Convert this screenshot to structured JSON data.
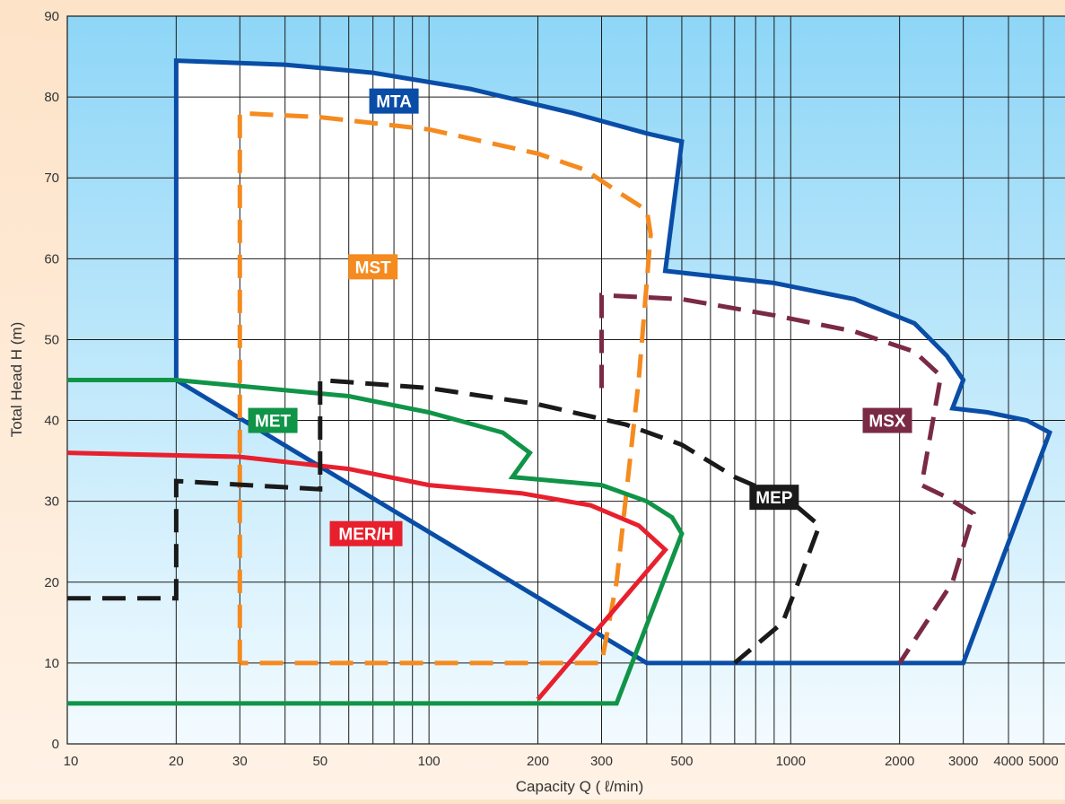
{
  "chart_data": {
    "type": "line",
    "title": "",
    "xlabel": "Capacity Q ( ℓ/min)",
    "ylabel": "Total Head H (m)",
    "xscale": "log",
    "xlim": [
      10,
      6000
    ],
    "ylim": [
      0,
      90
    ],
    "grid": true,
    "x_ticks": [
      10,
      20,
      30,
      50,
      100,
      200,
      300,
      500,
      1000,
      2000,
      3000,
      4000,
      5000
    ],
    "x_tick_labels": [
      "10",
      "20",
      "30",
      "50",
      "100",
      "200",
      "300",
      "500",
      "1000",
      "2000",
      "3000",
      "4000",
      "5000"
    ],
    "y_ticks": [
      0,
      10,
      20,
      30,
      40,
      50,
      60,
      70,
      80,
      90
    ],
    "y_tick_labels": [
      "0",
      "10",
      "20",
      "30",
      "40",
      "50",
      "60",
      "70",
      "80",
      "90"
    ],
    "background_colors": {
      "top": "#8ed6f7",
      "bottom": "#f3fbff"
    },
    "series": [
      {
        "name": "MTA",
        "color": "#0a4da6",
        "dashed": false,
        "fill": true,
        "points": [
          [
            20,
            45
          ],
          [
            20,
            84.5
          ],
          [
            40,
            84
          ],
          [
            70,
            83
          ],
          [
            130,
            81
          ],
          [
            250,
            78
          ],
          [
            400,
            75.5
          ],
          [
            500,
            74.5
          ],
          [
            450,
            58.5
          ],
          [
            900,
            57
          ],
          [
            1500,
            55
          ],
          [
            2200,
            52
          ],
          [
            2700,
            48
          ],
          [
            3000,
            45
          ],
          [
            2800,
            41.5
          ],
          [
            3500,
            41
          ],
          [
            4500,
            40
          ],
          [
            5200,
            38.5
          ],
          [
            3000,
            10
          ],
          [
            400,
            10
          ]
        ]
      },
      {
        "name": "MST",
        "color": "#f58a1f",
        "dashed": true,
        "fill": false,
        "points": [
          [
            30,
            10
          ],
          [
            30,
            78
          ],
          [
            50,
            77.5
          ],
          [
            100,
            76
          ],
          [
            200,
            73
          ],
          [
            270,
            71
          ],
          [
            340,
            68
          ],
          [
            400,
            66
          ],
          [
            410,
            63
          ],
          [
            380,
            45
          ],
          [
            330,
            20
          ],
          [
            300,
            10
          ],
          [
            30,
            10
          ]
        ]
      },
      {
        "name": "MET",
        "color": "#109447",
        "dashed": false,
        "fill": false,
        "points": [
          [
            10,
            5
          ],
          [
            330,
            5
          ],
          [
            500,
            26
          ],
          [
            470,
            28
          ],
          [
            400,
            30
          ],
          [
            300,
            32
          ],
          [
            170,
            33
          ],
          [
            190,
            36
          ],
          [
            160,
            38.5
          ],
          [
            100,
            41
          ],
          [
            60,
            43
          ],
          [
            20,
            45
          ],
          [
            10,
            45
          ]
        ]
      },
      {
        "name": "MER/H",
        "color": "#e8202d",
        "dashed": false,
        "fill": false,
        "points": [
          [
            10,
            36
          ],
          [
            30,
            35.5
          ],
          [
            60,
            34
          ],
          [
            100,
            32
          ],
          [
            180,
            31
          ],
          [
            280,
            29.5
          ],
          [
            380,
            27
          ],
          [
            450,
            24
          ],
          [
            200,
            5.5
          ]
        ]
      },
      {
        "name": "MEP",
        "color": "#1a1a1a",
        "dashed": true,
        "fill": false,
        "points": [
          [
            10,
            18
          ],
          [
            20,
            18
          ],
          [
            20,
            32.5
          ],
          [
            50,
            31.5
          ],
          [
            50,
            45
          ],
          [
            100,
            44
          ],
          [
            200,
            42
          ],
          [
            350,
            39.5
          ],
          [
            500,
            37
          ],
          [
            700,
            33
          ],
          [
            1000,
            30
          ],
          [
            1200,
            27
          ],
          [
            1050,
            20
          ],
          [
            950,
            15
          ],
          [
            700,
            10
          ]
        ]
      },
      {
        "name": "MSX",
        "color": "#7a2a45",
        "dashed": true,
        "fill": false,
        "points": [
          [
            300,
            44
          ],
          [
            300,
            55.5
          ],
          [
            500,
            55
          ],
          [
            900,
            53
          ],
          [
            1500,
            51
          ],
          [
            2200,
            48.5
          ],
          [
            2600,
            45.5
          ],
          [
            2300,
            32
          ],
          [
            2700,
            30.5
          ],
          [
            3200,
            28.5
          ],
          [
            2800,
            20
          ],
          [
            2000,
            10
          ]
        ]
      }
    ],
    "annotations": [
      {
        "text": "MTA",
        "x": 80,
        "y": 79.5,
        "color": "#0a4da6"
      },
      {
        "text": "MST",
        "x": 70,
        "y": 59,
        "color": "#f58a1f"
      },
      {
        "text": "MET",
        "x": 37,
        "y": 40,
        "color": "#109447"
      },
      {
        "text": "MER/H",
        "x": 67,
        "y": 26,
        "color": "#e8202d"
      },
      {
        "text": "MEP",
        "x": 900,
        "y": 30.5,
        "color": "#1a1a1a"
      },
      {
        "text": "MSX",
        "x": 1850,
        "y": 40,
        "color": "#7a2a45"
      }
    ]
  }
}
